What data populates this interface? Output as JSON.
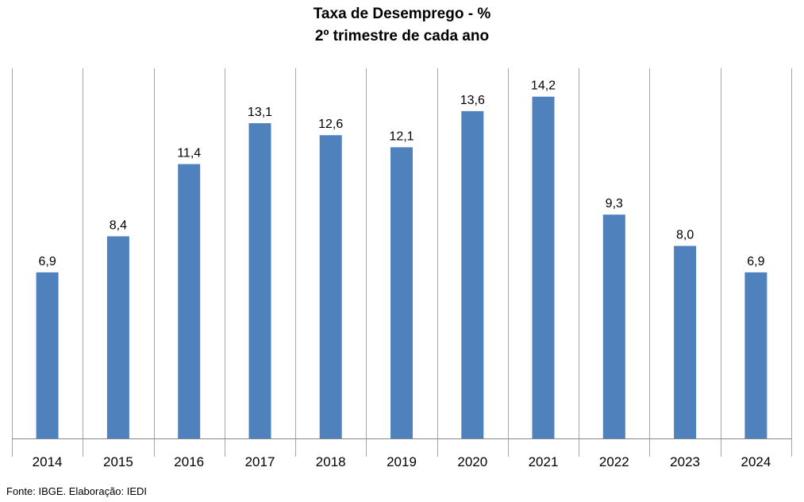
{
  "chart_data": {
    "type": "bar",
    "title": "Taxa de Desemprego - %",
    "subtitle": "2º trimestre de cada ano",
    "categories": [
      "2014",
      "2015",
      "2016",
      "2017",
      "2018",
      "2019",
      "2020",
      "2021",
      "2022",
      "2023",
      "2024"
    ],
    "values": [
      6.9,
      8.4,
      11.4,
      13.1,
      12.6,
      12.1,
      13.6,
      14.2,
      9.3,
      8.0,
      6.9
    ],
    "data_labels": [
      "6,9",
      "8,4",
      "11,4",
      "13,1",
      "12,6",
      "12,1",
      "13,6",
      "14,2",
      "9,3",
      "8,0",
      "6,9"
    ],
    "xlabel": "",
    "ylabel": "",
    "ylim": [
      0,
      17
    ],
    "grid": "vertical category dividers",
    "legend": "none",
    "bar_color": "#4F81BD"
  },
  "footer": {
    "source": "Fonte: IBGE. Elaboração: IEDI"
  }
}
